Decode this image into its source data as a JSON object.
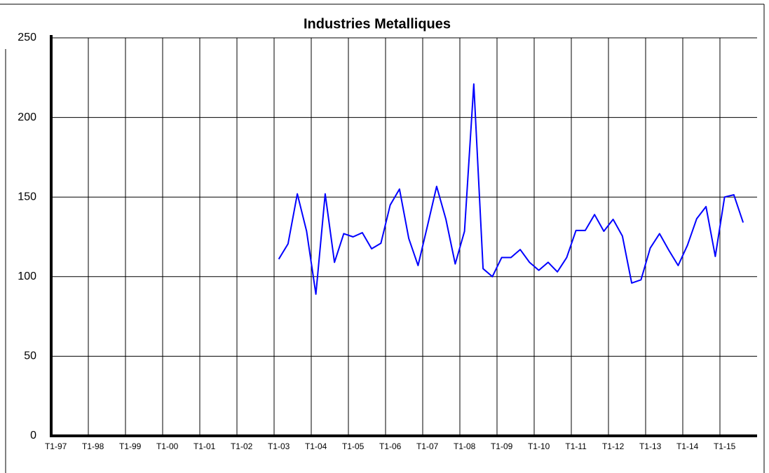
{
  "chart_data": {
    "type": "line",
    "title": "Industries Metalliques",
    "categories": [
      "T1-97",
      null,
      null,
      null,
      "T1-98",
      null,
      null,
      null,
      "T1-99",
      null,
      null,
      null,
      "T1-00",
      null,
      null,
      null,
      "T1-01",
      null,
      null,
      null,
      "T1-02",
      null,
      null,
      null,
      "T1-03",
      null,
      null,
      null,
      "T1-04",
      null,
      null,
      null,
      "T1-05",
      null,
      null,
      null,
      "T1-06",
      null,
      null,
      null,
      "T1-07",
      null,
      null,
      null,
      "T1-08",
      null,
      null,
      null,
      "T1-09",
      null,
      null,
      null,
      "T1-10",
      null,
      null,
      null,
      "T1-11",
      null,
      null,
      null,
      "T1-12",
      null,
      null,
      null,
      "T1-13",
      null,
      null,
      null,
      "T1-14",
      null,
      null,
      null,
      "T1-15",
      null,
      null,
      null
    ],
    "series": [
      {
        "color": "#0000ff",
        "values": [
          null,
          null,
          null,
          null,
          null,
          null,
          null,
          null,
          null,
          null,
          null,
          null,
          null,
          null,
          null,
          null,
          null,
          null,
          null,
          null,
          null,
          null,
          null,
          null,
          111,
          120.6,
          152,
          128.5,
          89,
          152,
          109,
          127,
          125,
          127.6,
          117.5,
          121,
          145,
          155,
          124,
          107,
          131.6,
          156.7,
          136,
          108,
          128.5,
          221,
          105,
          100,
          112,
          112,
          117,
          109,
          104,
          109,
          103,
          112,
          129,
          129,
          139,
          128.5,
          136,
          125.5,
          96,
          98,
          118,
          127,
          116.6,
          107,
          119.7,
          136.4,
          144,
          112.7,
          150,
          151.4,
          134,
          null
        ]
      }
    ],
    "ylim": [
      0,
      250
    ],
    "yticks": [
      0,
      50,
      100,
      150,
      200,
      250
    ],
    "grid": true
  }
}
